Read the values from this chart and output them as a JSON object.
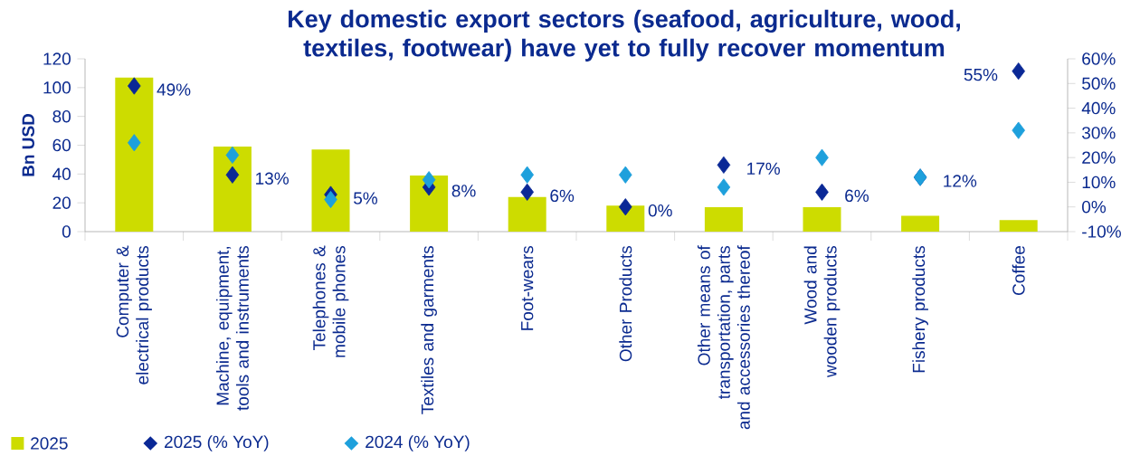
{
  "chart_data": {
    "type": "bar",
    "title": "Key domestic export sectors (seafood, agriculture, wood, textiles, footwear) have yet to fully recover momentum",
    "categories": [
      "Computer & electrical products",
      "Machine, equipment, tools and instruments",
      "Telephones & mobile phones",
      "Textiles and garments",
      "Foot-wears",
      "Other Products",
      "Other means of transportation, parts and accessories thereof",
      "Wood and wooden products",
      "Fishery products",
      "Coffee"
    ],
    "ylabel": "Bn USD",
    "ylim": [
      0,
      120
    ],
    "yticks": [
      0,
      20,
      40,
      60,
      80,
      100,
      120
    ],
    "y2lim": [
      -10,
      60
    ],
    "y2ticks": [
      {
        "value": -10,
        "label": "-10%"
      },
      {
        "value": 0,
        "label": "0%"
      },
      {
        "value": 10,
        "label": "10%"
      },
      {
        "value": 20,
        "label": "20%"
      },
      {
        "value": 30,
        "label": "30%"
      },
      {
        "value": 40,
        "label": "40%"
      },
      {
        "value": 50,
        "label": "50%"
      },
      {
        "value": 60,
        "label": "60%"
      }
    ],
    "marker": "diamond",
    "legend": "bottom left",
    "grid": false,
    "series": [
      {
        "name": "2025",
        "color": "#cddc00",
        "values": [
          107,
          59,
          57,
          39,
          24,
          18,
          17,
          17,
          11,
          8
        ]
      },
      {
        "name": "2025 (% YoY)",
        "type": "scatter",
        "axis": "y2",
        "color": "#0a2896",
        "values": [
          49,
          13,
          5,
          8,
          6,
          0,
          17,
          6,
          12,
          55
        ],
        "value_labels": [
          "49%",
          "13%",
          "5%",
          "8%",
          "6%",
          "0%",
          "17%",
          "6%",
          "12%",
          "55%"
        ]
      },
      {
        "name": "2024 (% YoY)",
        "type": "scatter",
        "axis": "y2",
        "color": "#1ea0dc",
        "values": [
          26,
          21,
          3,
          11,
          13,
          13,
          8,
          20,
          12,
          31
        ]
      }
    ]
  }
}
